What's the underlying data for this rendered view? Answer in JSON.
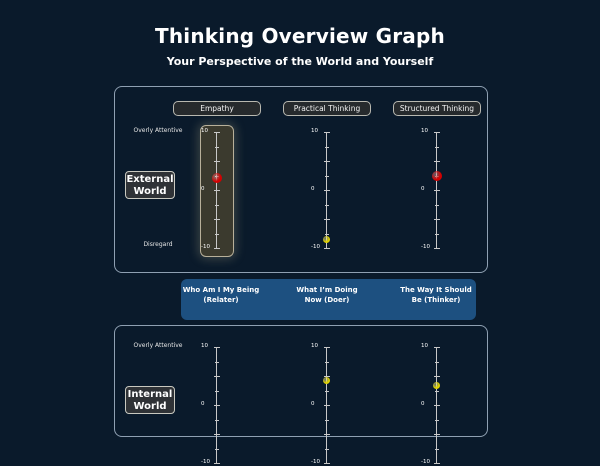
{
  "header": {
    "title": "Thinking Overview Graph",
    "subtitle": "Your Perspective of the World and Yourself"
  },
  "columns": [
    "Empathy",
    "Practical Thinking",
    "Structured Thinking"
  ],
  "axis": {
    "top_label": "Overly Attentive",
    "bottom_label": "Disregard",
    "tick_top": "10",
    "tick_mid": "0",
    "tick_bottom": "-10",
    "min": -10,
    "max": 10
  },
  "external": {
    "label": "External World",
    "values": [
      2,
      -8.5,
      2.4
    ],
    "colors": [
      "#d40000",
      "#e0d200",
      "#d40000"
    ],
    "highlighted_column": 0
  },
  "banner": {
    "items": [
      "Who Am I My Being (Relater)",
      "What I’m Doing Now (Doer)",
      "The Way It Should Be (Thinker)"
    ]
  },
  "internal": {
    "label": "Internal World",
    "values": [
      null,
      4.3,
      3.4
    ],
    "colors": [
      "#2bd02b",
      "#e0d200",
      "#e0d200"
    ]
  }
}
